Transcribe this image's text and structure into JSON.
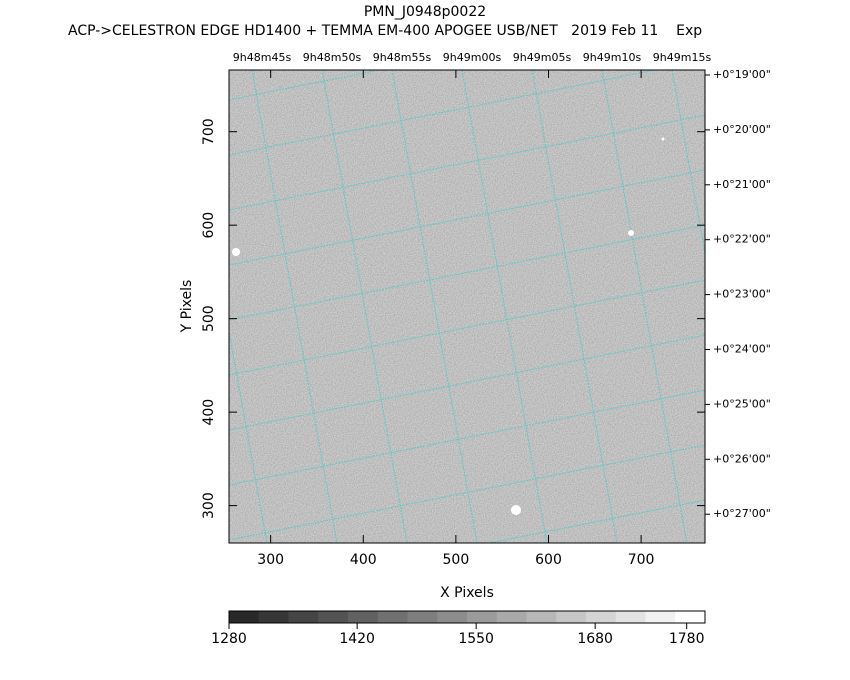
{
  "title": "PMN_J0948p0022",
  "subtitle": "ACP->CELESTRON EDGE HD1400 + TEMMA EM-400 APOGEE USB/NET   2019 Feb 11    Exp",
  "chart_data": {
    "type": "image",
    "xlabel": "X Pixels",
    "ylabel": "Y Pixels",
    "xlim": [
      255,
      769
    ],
    "xticks": [
      300,
      400,
      500,
      600,
      700
    ],
    "ylim": [
      260,
      766
    ],
    "yticks": [
      300,
      400,
      500,
      600,
      700
    ],
    "ra_labels": [
      "9h48m45s",
      "9h48m50s",
      "9h48m55s",
      "9h49m00s",
      "9h49m05s",
      "9h49m10s",
      "9h49m15s"
    ],
    "dec_labels": [
      "+0°19'00\"",
      "+0°20'00\"",
      "+0°21'00\"",
      "+0°22'00\"",
      "+0°23'00\"",
      "+0°24'00\"",
      "+0°25'00\"",
      "+0°26'00\"",
      "+0°27'00\""
    ],
    "colorbar": {
      "lim": [
        1280,
        1800
      ],
      "ticks": [
        1280,
        1420,
        1550,
        1680,
        1780
      ]
    }
  }
}
